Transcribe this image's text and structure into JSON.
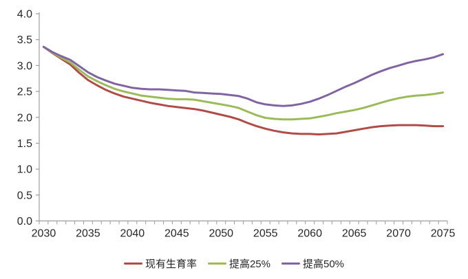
{
  "chart_data": {
    "type": "line",
    "title": "",
    "xlabel": "",
    "ylabel": "",
    "x": [
      2030,
      2031,
      2032,
      2033,
      2034,
      2035,
      2036,
      2037,
      2038,
      2039,
      2040,
      2041,
      2042,
      2043,
      2044,
      2045,
      2046,
      2047,
      2048,
      2049,
      2050,
      2051,
      2052,
      2053,
      2054,
      2055,
      2056,
      2057,
      2058,
      2059,
      2060,
      2061,
      2062,
      2063,
      2064,
      2065,
      2066,
      2067,
      2068,
      2069,
      2070,
      2071,
      2072,
      2073,
      2074,
      2075
    ],
    "series": [
      {
        "name": "现有生育率",
        "color": "#B04B47",
        "values": [
          3.36,
          3.24,
          3.13,
          3.02,
          2.86,
          2.72,
          2.62,
          2.53,
          2.46,
          2.4,
          2.36,
          2.32,
          2.28,
          2.25,
          2.22,
          2.2,
          2.18,
          2.16,
          2.13,
          2.09,
          2.05,
          2.01,
          1.96,
          1.89,
          1.83,
          1.78,
          1.74,
          1.71,
          1.69,
          1.68,
          1.68,
          1.67,
          1.68,
          1.69,
          1.72,
          1.75,
          1.78,
          1.81,
          1.83,
          1.84,
          1.85,
          1.85,
          1.85,
          1.84,
          1.83,
          1.83
        ]
      },
      {
        "name": "提高25%",
        "color": "#9BBB59",
        "values": [
          3.36,
          3.25,
          3.15,
          3.06,
          2.92,
          2.79,
          2.7,
          2.62,
          2.55,
          2.5,
          2.46,
          2.42,
          2.4,
          2.38,
          2.36,
          2.35,
          2.35,
          2.34,
          2.31,
          2.28,
          2.25,
          2.22,
          2.18,
          2.11,
          2.04,
          1.99,
          1.97,
          1.96,
          1.96,
          1.97,
          1.98,
          2.01,
          2.04,
          2.08,
          2.11,
          2.14,
          2.18,
          2.23,
          2.28,
          2.33,
          2.37,
          2.4,
          2.42,
          2.43,
          2.45,
          2.48
        ]
      },
      {
        "name": "提高50%",
        "color": "#8064A2",
        "values": [
          3.36,
          3.26,
          3.18,
          3.11,
          2.99,
          2.87,
          2.78,
          2.71,
          2.65,
          2.61,
          2.57,
          2.55,
          2.54,
          2.54,
          2.53,
          2.52,
          2.51,
          2.48,
          2.47,
          2.46,
          2.45,
          2.43,
          2.41,
          2.36,
          2.29,
          2.25,
          2.23,
          2.22,
          2.23,
          2.26,
          2.3,
          2.36,
          2.43,
          2.51,
          2.59,
          2.66,
          2.74,
          2.82,
          2.89,
          2.95,
          3.0,
          3.05,
          3.09,
          3.12,
          3.16,
          3.22
        ]
      }
    ],
    "ylim": [
      0.0,
      4.0
    ],
    "y_tick_step": 0.5,
    "y_tick_labels": [
      "0.0",
      "0.5",
      "1.0",
      "1.5",
      "2.0",
      "2.5",
      "3.0",
      "3.5",
      "4.0"
    ],
    "x_tick_labels": [
      "2030",
      "2035",
      "2040",
      "2045",
      "2050",
      "2055",
      "2060",
      "2065",
      "2070",
      "2075"
    ],
    "x_minor_ticks_every_year": true,
    "grid": false,
    "legend_position": "bottom",
    "axis_color": "#9C9C9C",
    "text_color": "#262626"
  }
}
